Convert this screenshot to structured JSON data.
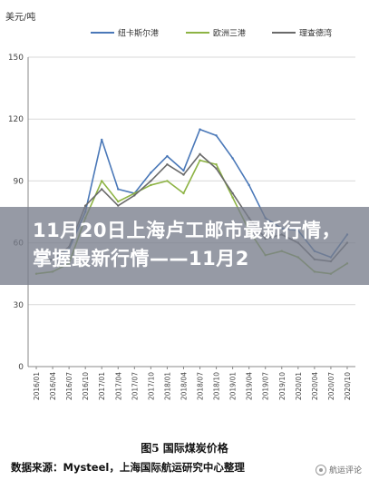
{
  "chart_data": {
    "type": "line",
    "title": "图5 国际煤炭价格",
    "ylabel": "美元/吨",
    "xlabel": "",
    "ylim": [
      0,
      150
    ],
    "yticks": [
      0,
      30,
      60,
      90,
      120,
      150
    ],
    "grid": true,
    "legend_position": "top",
    "x": [
      "2016/01",
      "2016/04",
      "2016/07",
      "2016/10",
      "2017/01",
      "2017/04",
      "2017/07",
      "2017/10",
      "2018/01",
      "2018/04",
      "2018/07",
      "2018/10",
      "2019/01",
      "2019/04",
      "2019/07",
      "2019/10",
      "2020/01",
      "2020/04",
      "2020/07",
      "2020/10"
    ],
    "series": [
      {
        "name": "纽卡斯尔港",
        "color": "#4a78b8",
        "values": [
          50,
          52,
          57,
          75,
          110,
          86,
          84,
          94,
          102,
          95,
          115,
          112,
          101,
          88,
          72,
          67,
          66,
          56,
          53,
          64
        ]
      },
      {
        "name": "欧洲三港",
        "color": "#8db344",
        "values": [
          45,
          46,
          50,
          72,
          90,
          80,
          84,
          88,
          90,
          84,
          100,
          98,
          82,
          66,
          54,
          56,
          53,
          46,
          45,
          50
        ]
      },
      {
        "name": "理查德湾",
        "color": "#6a6a6a",
        "values": [
          51,
          52,
          58,
          78,
          86,
          78,
          83,
          90,
          98,
          93,
          103,
          96,
          84,
          72,
          62,
          64,
          60,
          52,
          51,
          60
        ]
      }
    ]
  },
  "overlay": {
    "headline": "11月20日上海卢工邮市最新行情，掌握最新行情——11月2"
  },
  "caption": "图5 国际煤炭价格",
  "source": "数据来源：Mysteel，上海国际航运研究中心整理",
  "watermark": "航运评论"
}
